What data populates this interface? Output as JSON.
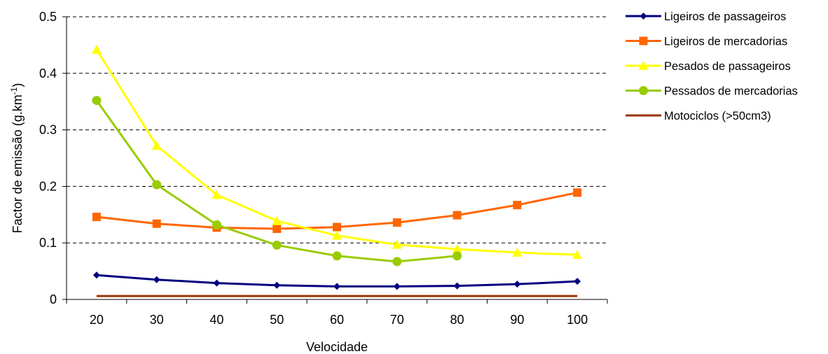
{
  "chart_data": {
    "type": "line",
    "xlabel": "Velocidade",
    "ylabel": "Factor de emissão (g.km",
    "ylabel_superscript": "-1",
    "ylabel_close": ")",
    "categories": [
      "20",
      "30",
      "40",
      "50",
      "60",
      "70",
      "80",
      "90",
      "100"
    ],
    "ylim": [
      0,
      0.5
    ],
    "yticks": [
      "0",
      "0.1",
      "0.2",
      "0.3",
      "0.4",
      "0.5"
    ],
    "ytick_values": [
      0,
      0.1,
      0.2,
      0.3,
      0.4,
      0.5
    ],
    "grid": true,
    "legend_position": "right",
    "series": [
      {
        "name": "Ligeiros de passageiros",
        "color": "#000080",
        "marker": "diamond",
        "values": [
          0.043,
          0.035,
          0.029,
          0.025,
          0.023,
          0.023,
          0.024,
          0.027,
          0.032
        ]
      },
      {
        "name": "Ligeiros de mercadorias",
        "color": "#FF6600",
        "marker": "square",
        "values": [
          0.146,
          0.134,
          0.127,
          0.125,
          0.128,
          0.136,
          0.149,
          0.167,
          0.189
        ]
      },
      {
        "name": "Pesados de passageiros",
        "color": "#FFFF00",
        "marker": "triangle",
        "values": [
          0.442,
          0.272,
          0.185,
          0.139,
          0.113,
          0.097,
          0.089,
          0.083,
          0.079
        ]
      },
      {
        "name": "Pessados de mercadorias",
        "color": "#99CC00",
        "marker": "circle",
        "values": [
          0.352,
          0.203,
          0.132,
          0.096,
          0.077,
          0.067,
          0.077,
          null,
          null
        ]
      },
      {
        "name": "Motociclos (>50cm3)",
        "color": "#993300",
        "marker": "none",
        "values": [
          0.006,
          0.006,
          0.006,
          0.006,
          0.006,
          0.006,
          0.006,
          0.006,
          0.006
        ]
      }
    ]
  }
}
